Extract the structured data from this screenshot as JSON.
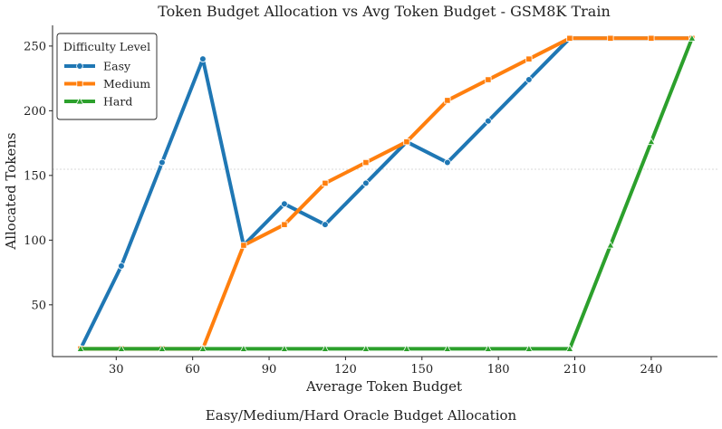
{
  "chart_data": {
    "type": "line",
    "title": "Token Budget Allocation vs Avg Token Budget - GSM8K Train",
    "xlabel": "Average Token Budget",
    "ylabel": "Allocated Tokens",
    "xlim": [
      5,
      266
    ],
    "ylim": [
      10,
      266
    ],
    "xticks": [
      30,
      60,
      90,
      120,
      150,
      180,
      210,
      240
    ],
    "yticks": [
      50,
      100,
      150,
      200,
      250
    ],
    "grid": "horizontal dotted line near y=152",
    "legend": {
      "title": "Difficulty Level",
      "position": "top-left"
    },
    "x": [
      16,
      32,
      48,
      64,
      80,
      96,
      112,
      128,
      144,
      160,
      176,
      192,
      208,
      224,
      240,
      256
    ],
    "series": [
      {
        "name": "Easy",
        "color": "#1f77b4",
        "marker": "circle",
        "values": [
          16,
          80,
          160,
          240,
          96,
          128,
          112,
          144,
          176,
          160,
          192,
          224,
          256,
          256,
          256,
          256
        ]
      },
      {
        "name": "Medium",
        "color": "#ff7f0e",
        "marker": "square",
        "values": [
          16,
          16,
          16,
          16,
          96,
          112,
          144,
          160,
          176,
          208,
          224,
          240,
          256,
          256,
          256,
          256
        ]
      },
      {
        "name": "Hard",
        "color": "#2ca02c",
        "marker": "triangle",
        "values": [
          16,
          16,
          16,
          16,
          16,
          16,
          16,
          16,
          16,
          16,
          16,
          16,
          16,
          96,
          176,
          256
        ]
      }
    ]
  },
  "caption": "Easy/Medium/Hard Oracle Budget Allocation"
}
